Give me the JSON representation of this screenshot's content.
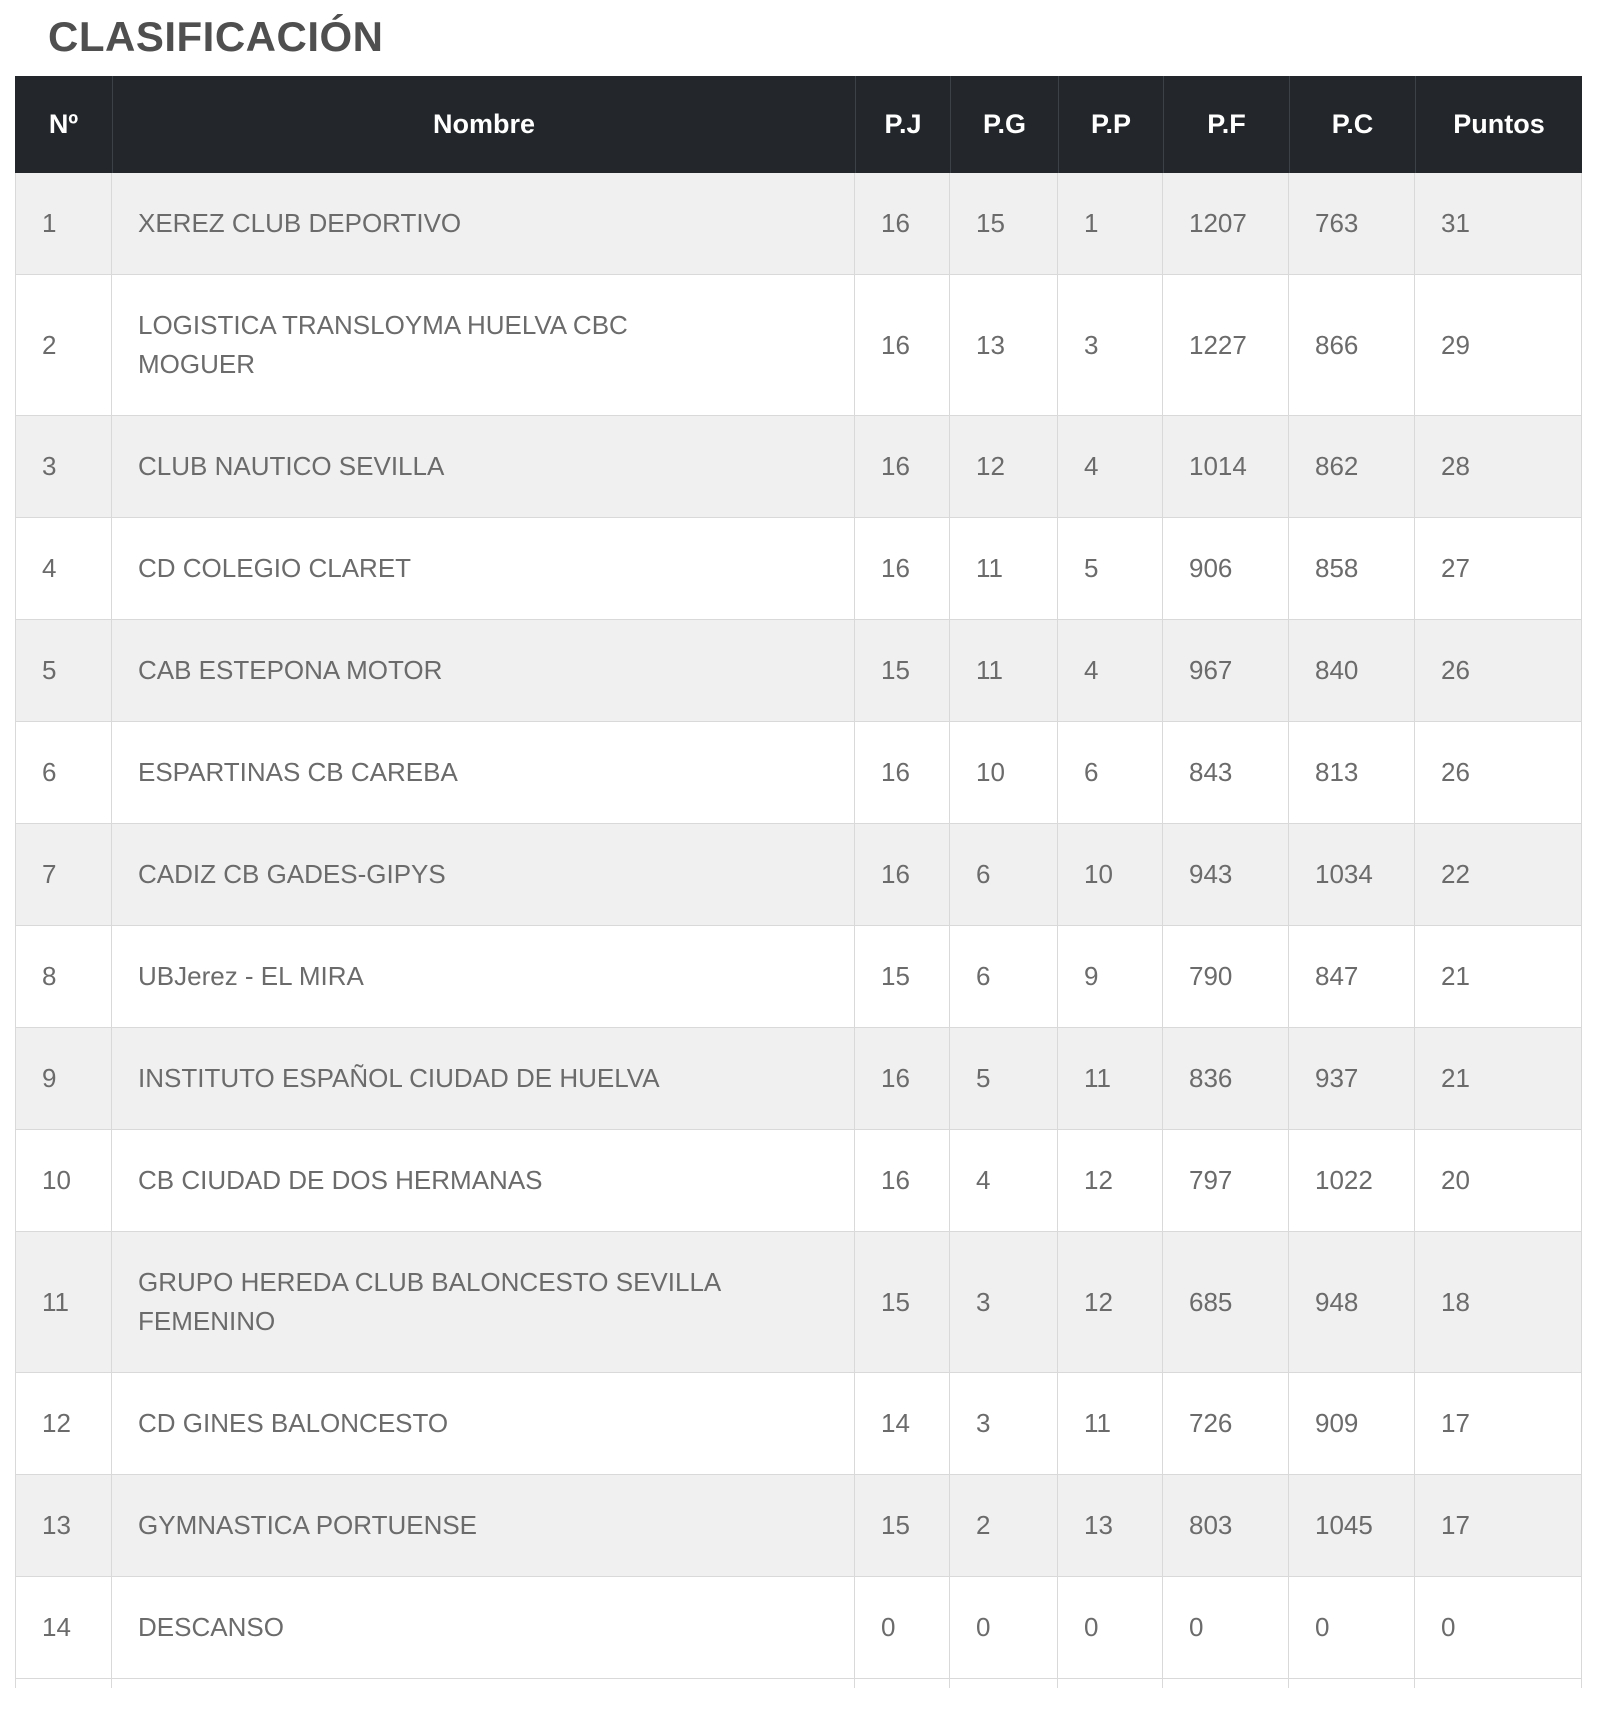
{
  "page": {
    "title": "CLASIFICACIÓN"
  },
  "colors": {
    "header_bg": "#23272b",
    "header_text": "#ffffff",
    "header_divider": "#3c4147",
    "row_alt_bg": "#f0f0f0",
    "row_bg": "#ffffff",
    "body_text": "#6b6b6b",
    "border": "#d9d9d9",
    "title_text": "#4f4f4f"
  },
  "table": {
    "columns": [
      {
        "key": "n",
        "label": "Nº"
      },
      {
        "key": "nombre",
        "label": "Nombre"
      },
      {
        "key": "pj",
        "label": "P.J"
      },
      {
        "key": "pg",
        "label": "P.G"
      },
      {
        "key": "pp",
        "label": "P.P"
      },
      {
        "key": "pf",
        "label": "P.F"
      },
      {
        "key": "pc",
        "label": "P.C"
      },
      {
        "key": "puntos",
        "label": "Puntos"
      }
    ],
    "rows": [
      {
        "n": "1",
        "nombre": "XEREZ CLUB DEPORTIVO",
        "pj": "16",
        "pg": "15",
        "pp": "1",
        "pf": "1207",
        "pc": "763",
        "puntos": "31"
      },
      {
        "n": "2",
        "nombre": "LOGISTICA TRANSLOYMA HUELVA CBC MOGUER",
        "pj": "16",
        "pg": "13",
        "pp": "3",
        "pf": "1227",
        "pc": "866",
        "puntos": "29"
      },
      {
        "n": "3",
        "nombre": "CLUB NAUTICO SEVILLA",
        "pj": "16",
        "pg": "12",
        "pp": "4",
        "pf": "1014",
        "pc": "862",
        "puntos": "28"
      },
      {
        "n": "4",
        "nombre": "CD COLEGIO CLARET",
        "pj": "16",
        "pg": "11",
        "pp": "5",
        "pf": "906",
        "pc": "858",
        "puntos": "27"
      },
      {
        "n": "5",
        "nombre": "CAB ESTEPONA MOTOR",
        "pj": "15",
        "pg": "11",
        "pp": "4",
        "pf": "967",
        "pc": "840",
        "puntos": "26"
      },
      {
        "n": "6",
        "nombre": "ESPARTINAS CB CAREBA",
        "pj": "16",
        "pg": "10",
        "pp": "6",
        "pf": "843",
        "pc": "813",
        "puntos": "26"
      },
      {
        "n": "7",
        "nombre": "CADIZ CB GADES-GIPYS",
        "pj": "16",
        "pg": "6",
        "pp": "10",
        "pf": "943",
        "pc": "1034",
        "puntos": "22"
      },
      {
        "n": "8",
        "nombre": "UBJerez - EL MIRA",
        "pj": "15",
        "pg": "6",
        "pp": "9",
        "pf": "790",
        "pc": "847",
        "puntos": "21"
      },
      {
        "n": "9",
        "nombre": "INSTITUTO ESPAÑOL CIUDAD DE HUELVA",
        "pj": "16",
        "pg": "5",
        "pp": "11",
        "pf": "836",
        "pc": "937",
        "puntos": "21"
      },
      {
        "n": "10",
        "nombre": "CB CIUDAD DE DOS HERMANAS",
        "pj": "16",
        "pg": "4",
        "pp": "12",
        "pf": "797",
        "pc": "1022",
        "puntos": "20"
      },
      {
        "n": "11",
        "nombre": "GRUPO HEREDA CLUB BALONCESTO SEVILLA FEMENINO",
        "pj": "15",
        "pg": "3",
        "pp": "12",
        "pf": "685",
        "pc": "948",
        "puntos": "18"
      },
      {
        "n": "12",
        "nombre": "CD GINES BALONCESTO",
        "pj": "14",
        "pg": "3",
        "pp": "11",
        "pf": "726",
        "pc": "909",
        "puntos": "17"
      },
      {
        "n": "13",
        "nombre": "GYMNASTICA PORTUENSE",
        "pj": "15",
        "pg": "2",
        "pp": "13",
        "pf": "803",
        "pc": "1045",
        "puntos": "17"
      },
      {
        "n": "14",
        "nombre": "DESCANSO",
        "pj": "0",
        "pg": "0",
        "pp": "0",
        "pf": "0",
        "pc": "0",
        "puntos": "0"
      }
    ]
  }
}
